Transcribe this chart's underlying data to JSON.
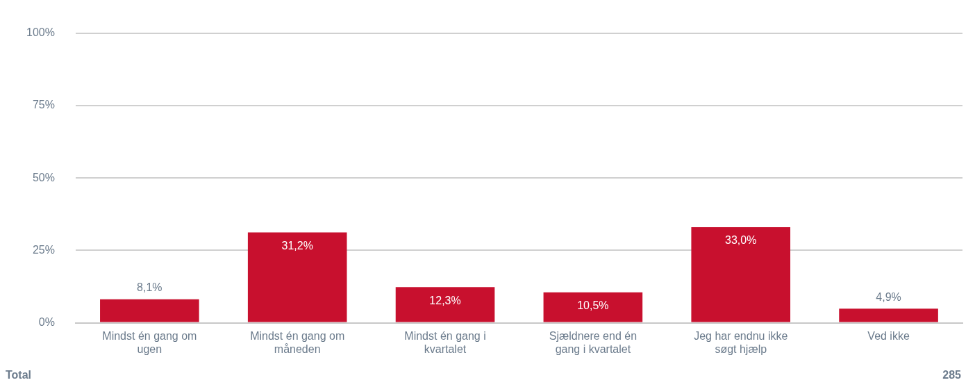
{
  "chart_data": {
    "type": "bar",
    "categories": [
      "Mindst én gang om ugen",
      "Mindst én gang om måneden",
      "Mindst én gang i kvartalet",
      "Sjældnere end én gang i kvartalet",
      "Jeg har endnu ikke søgt hjælp",
      "Ved ikke"
    ],
    "values": [
      8.1,
      31.2,
      12.3,
      10.5,
      33.0,
      4.9
    ],
    "value_labels": [
      "8,1%",
      "31,2%",
      "12,3%",
      "10,5%",
      "33,0%",
      "4,9%"
    ],
    "color": "#c8102e",
    "ylim": [
      0,
      100
    ],
    "yticks": [
      {
        "value": 0,
        "label": "0%"
      },
      {
        "value": 25,
        "label": "25%"
      },
      {
        "value": 50,
        "label": "50%"
      },
      {
        "value": 75,
        "label": "75%"
      },
      {
        "value": 100,
        "label": "100%"
      }
    ],
    "grid": "y",
    "legend": false,
    "annotations": [
      "Total",
      "285"
    ]
  }
}
